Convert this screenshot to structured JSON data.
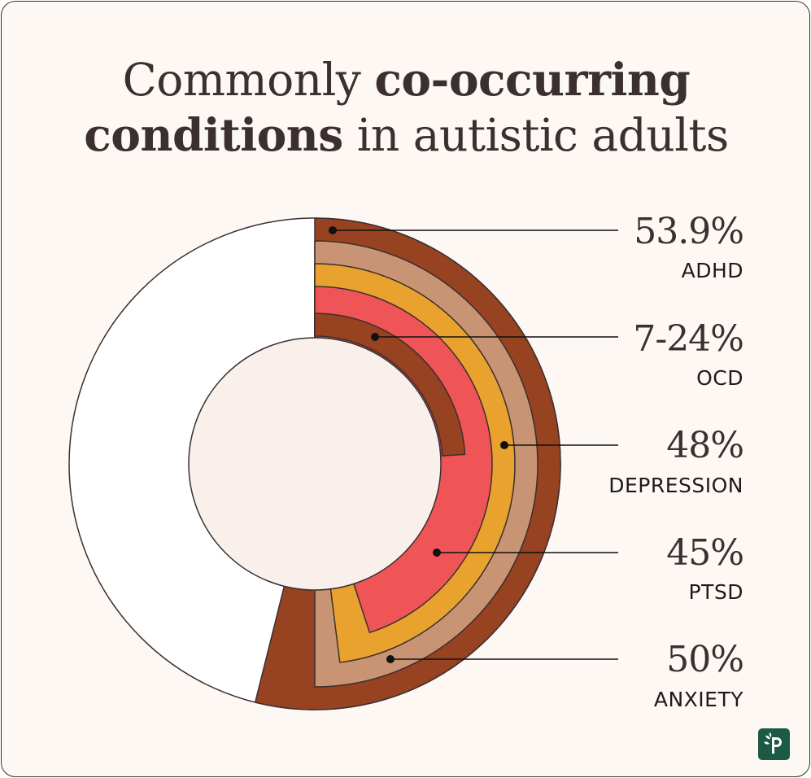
{
  "title": {
    "part1": "Commonly ",
    "part2_bold": "co-occurring",
    "part3_bold": "conditions",
    "part4": " in autistic adults"
  },
  "chart_data": {
    "type": "radial-bar",
    "title": "Commonly co-occurring conditions in autistic adults",
    "unit": "%",
    "series": [
      {
        "name": "ADHD",
        "label": "53.9%",
        "value": 53.9,
        "color": "#974220"
      },
      {
        "name": "ANXIETY",
        "label": "50%",
        "value": 50,
        "color": "#c99473"
      },
      {
        "name": "DEPRESSION",
        "label": "48%",
        "value": 48,
        "color": "#e9a22e"
      },
      {
        "name": "PTSD",
        "label": "45%",
        "value": 45,
        "color": "#ef5557"
      },
      {
        "name": "OCD",
        "label": "7-24%",
        "value": 24,
        "range": [
          7,
          24
        ],
        "color": "#974220"
      }
    ],
    "legend_order": [
      "ADHD",
      "OCD",
      "DEPRESSION",
      "PTSD",
      "ANXIETY"
    ]
  },
  "colors": {
    "background": "#fdf8f4",
    "ring_remainder": "#ffffff",
    "center": "#f9f0ec",
    "outline": "#3b2f2f"
  },
  "logo": {
    "icon": "leaf-p-logo-icon"
  }
}
